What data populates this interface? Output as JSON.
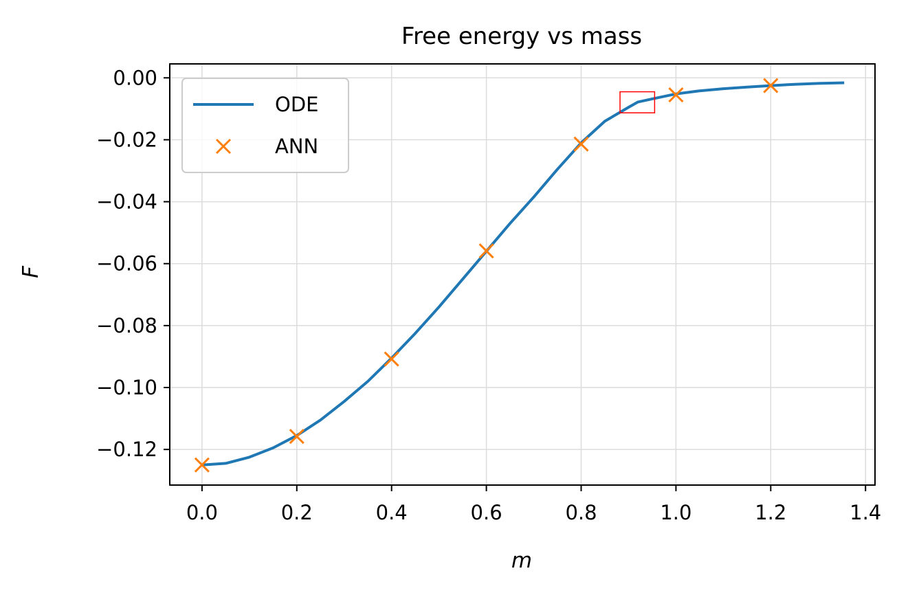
{
  "chart_data": {
    "type": "line",
    "title": "Free energy vs mass",
    "xlabel": "m",
    "ylabel": "F",
    "xlim": [
      -0.068,
      1.42
    ],
    "ylim": [
      -0.1315,
      0.0045
    ],
    "xticks": [
      0.0,
      0.2,
      0.4,
      0.6,
      0.8,
      1.0,
      1.2,
      1.4
    ],
    "xtick_labels": [
      "0.0",
      "0.2",
      "0.4",
      "0.6",
      "0.8",
      "1.0",
      "1.2",
      "1.4"
    ],
    "yticks": [
      0.0,
      -0.02,
      -0.04,
      -0.06,
      -0.08,
      -0.1,
      -0.12
    ],
    "ytick_labels": [
      "0.00",
      "−0.02",
      "−0.04",
      "−0.06",
      "−0.08",
      "−0.10",
      "−0.12"
    ],
    "grid": true,
    "legend_position": "top-left",
    "series": [
      {
        "name": "ODE",
        "style": "line",
        "color": "#1f77b4",
        "x": [
          0.0,
          0.05,
          0.1,
          0.15,
          0.2,
          0.25,
          0.3,
          0.35,
          0.4,
          0.45,
          0.5,
          0.55,
          0.6,
          0.65,
          0.7,
          0.75,
          0.8,
          0.85,
          0.9,
          0.92,
          0.95,
          1.0,
          1.05,
          1.1,
          1.15,
          1.2,
          1.25,
          1.3,
          1.355
        ],
        "y": [
          -0.125,
          -0.1245,
          -0.1225,
          -0.1195,
          -0.1155,
          -0.1105,
          -0.1045,
          -0.098,
          -0.0905,
          -0.0825,
          -0.074,
          -0.065,
          -0.056,
          -0.047,
          -0.0385,
          -0.0295,
          -0.021,
          -0.014,
          -0.0095,
          -0.0078,
          -0.0068,
          -0.0052,
          -0.0042,
          -0.0035,
          -0.003,
          -0.0025,
          -0.0021,
          -0.0018,
          -0.0016
        ]
      },
      {
        "name": "ANN",
        "style": "markers",
        "marker": "x",
        "color": "#ff7f0e",
        "x": [
          0.0,
          0.2,
          0.4,
          0.6,
          0.8,
          1.0,
          1.2
        ],
        "y": [
          -0.125,
          -0.1158,
          -0.0908,
          -0.0559,
          -0.0214,
          -0.0055,
          -0.0025
        ]
      }
    ],
    "annotations": [
      {
        "type": "rectangle",
        "color": "#ff0000",
        "x_range": [
          0.882,
          0.955
        ],
        "y_range": [
          -0.0113,
          -0.0045
        ]
      }
    ]
  }
}
